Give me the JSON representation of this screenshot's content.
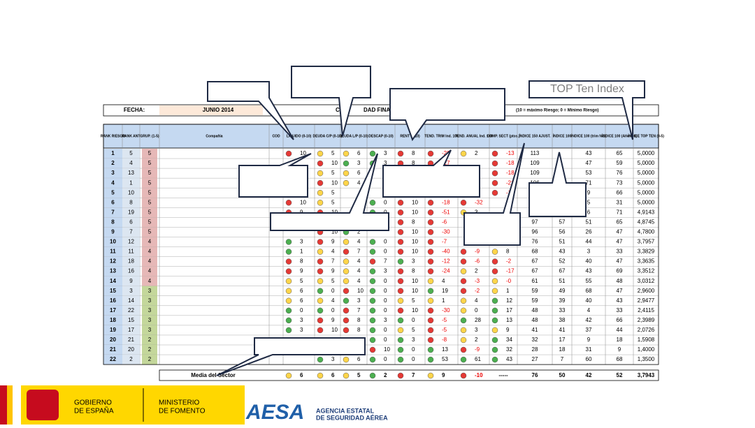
{
  "header": {
    "fecha_label": "FECHA:",
    "fecha": "JUNIO 2014",
    "title_left": "CR",
    "title_right": "DAD FINANCI",
    "scale_note": "(10 = máximo Riesgo; 0 = Mínimo Riesgo)"
  },
  "table": {
    "columns": [
      "RANK RIESGO",
      "RANK ANT",
      "GRUP. (1-5)",
      "Compañía",
      "COD",
      "LIQUIDO (0-10)",
      "DEUDA C/P (0-10)",
      "DEUDA L/P (0-10)",
      "DESCAP (0-10)",
      "RENT (0-10)",
      "TEND. TRIM Ind. 100",
      "TEND. ANUAL Ind. 100",
      "COMP. SECT (ptos.)",
      "ÍNDICE 150 AJUST.",
      "ÍNDICE 100",
      "ÍNDICE 100 (trim N-1)",
      "ÍNDICE 100 (Año N-1)",
      "ÍNDICE TOP TEN (0-5)"
    ],
    "rows": [
      [
        1,
        5,
        5,
        10,
        5,
        6,
        3,
        8,
        -20,
        2,
        -13,
        113,
        null,
        43,
        65,
        "5,0000"
      ],
      [
        2,
        4,
        5,
        null,
        10,
        3,
        3,
        8,
        -27,
        null,
        -18,
        109,
        null,
        47,
        59,
        "5,0000"
      ],
      [
        3,
        13,
        5,
        null,
        5,
        6,
        null,
        null,
        null,
        null,
        -18,
        109,
        null,
        53,
        76,
        "5,0000"
      ],
      [
        4,
        1,
        5,
        null,
        10,
        4,
        null,
        null,
        null,
        null,
        -21,
        106,
        null,
        71,
        73,
        "5,0000"
      ],
      [
        5,
        10,
        5,
        null,
        5,
        null,
        null,
        null,
        null,
        null,
        -13,
        null,
        null,
        9,
        66,
        "5,0000"
      ],
      [
        6,
        8,
        5,
        10,
        5,
        null,
        0,
        10,
        -18,
        -32,
        null,
        null,
        null,
        5,
        31,
        "5,0000"
      ],
      [
        7,
        19,
        5,
        9,
        10,
        null,
        0,
        10,
        -51,
        3,
        null,
        null,
        null,
        6,
        71,
        "4,9143"
      ],
      [
        8,
        6,
        5,
        null,
        null,
        null,
        null,
        8,
        -6,
        null,
        null,
        97,
        57,
        51,
        65,
        "4,8745"
      ],
      [
        9,
        7,
        5,
        null,
        10,
        2,
        null,
        10,
        -30,
        null,
        null,
        96,
        56,
        26,
        47,
        "4,7800"
      ],
      [
        10,
        12,
        4,
        3,
        9,
        4,
        0,
        10,
        -7,
        null,
        null,
        76,
        51,
        44,
        47,
        "3,7957"
      ],
      [
        11,
        11,
        4,
        1,
        4,
        7,
        0,
        10,
        -40,
        -9,
        8,
        68,
        43,
        3,
        33,
        "3,3829"
      ],
      [
        12,
        18,
        4,
        8,
        7,
        4,
        7,
        3,
        -12,
        -6,
        -2,
        67,
        52,
        40,
        47,
        "3,3635"
      ],
      [
        13,
        16,
        4,
        9,
        9,
        4,
        3,
        8,
        -24,
        2,
        -17,
        67,
        67,
        43,
        69,
        "3,3512"
      ],
      [
        14,
        9,
        4,
        5,
        5,
        4,
        0,
        10,
        4,
        -3,
        "-0",
        61,
        51,
        55,
        48,
        "3,0312"
      ],
      [
        15,
        3,
        3,
        6,
        0,
        10,
        0,
        10,
        19,
        -2,
        1,
        59,
        49,
        68,
        47,
        "2,9600"
      ],
      [
        16,
        14,
        3,
        6,
        4,
        3,
        0,
        5,
        1,
        4,
        12,
        59,
        39,
        40,
        43,
        "2,9477"
      ],
      [
        17,
        22,
        3,
        0,
        0,
        7,
        0,
        10,
        -30,
        0,
        17,
        48,
        33,
        4,
        33,
        "2,4115"
      ],
      [
        18,
        15,
        3,
        3,
        9,
        8,
        3,
        0,
        -5,
        28,
        13,
        48,
        38,
        42,
        66,
        "2,3989"
      ],
      [
        19,
        17,
        3,
        3,
        10,
        8,
        0,
        5,
        -5,
        3,
        9,
        41,
        41,
        37,
        44,
        "2,0726"
      ],
      [
        20,
        21,
        2,
        null,
        null,
        null,
        0,
        3,
        -8,
        2,
        34,
        32,
        17,
        9,
        18,
        "1,5908"
      ],
      [
        21,
        20,
        2,
        null,
        null,
        null,
        10,
        0,
        13,
        -9,
        32,
        28,
        18,
        31,
        9,
        "1,4000"
      ],
      [
        22,
        2,
        2,
        null,
        3,
        6,
        0,
        0,
        53,
        61,
        43,
        27,
        7,
        60,
        68,
        "1,3500"
      ]
    ],
    "average": {
      "label": "Media del Sector",
      "values": [
        6,
        6,
        5,
        2,
        7,
        9,
        -10,
        "-----",
        76,
        50,
        42,
        52,
        "3,7943"
      ]
    }
  },
  "callouts": [
    "TOP Ten Index"
  ],
  "footer": {
    "gobierno": [
      "GOBIERNO",
      "DE ESPAÑA"
    ],
    "ministerio": [
      "MINISTERIO",
      "DE FOMENTO"
    ],
    "aesa": "AESA",
    "agencia": [
      "AGENCIA ESTATAL",
      "DE SEGURIDAD AÉREA"
    ]
  }
}
